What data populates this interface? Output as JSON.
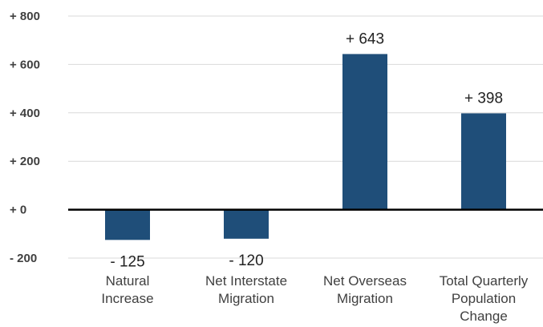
{
  "chart_data": {
    "type": "bar",
    "categories": [
      [
        "Natural",
        "Increase"
      ],
      [
        "Net Interstate",
        "Migration"
      ],
      [
        "Net Overseas",
        "Migration"
      ],
      [
        "Total Quarterly",
        "Population",
        "Change"
      ]
    ],
    "values": [
      -125,
      -120,
      643,
      398
    ],
    "data_labels": [
      "- 125",
      "- 120",
      "+ 643",
      "+ 398"
    ],
    "y_ticks": [
      {
        "value": 800,
        "label": "+ 800"
      },
      {
        "value": 600,
        "label": "+ 600"
      },
      {
        "value": 400,
        "label": "+ 400"
      },
      {
        "value": 200,
        "label": "+ 200"
      },
      {
        "value": 0,
        "label": "+ 0"
      },
      {
        "value": -200,
        "label": "- 200"
      }
    ],
    "ylim": [
      -200,
      800
    ],
    "grid": true,
    "bar_color": "#1f4e79",
    "title": "",
    "xlabel": "",
    "ylabel": ""
  }
}
